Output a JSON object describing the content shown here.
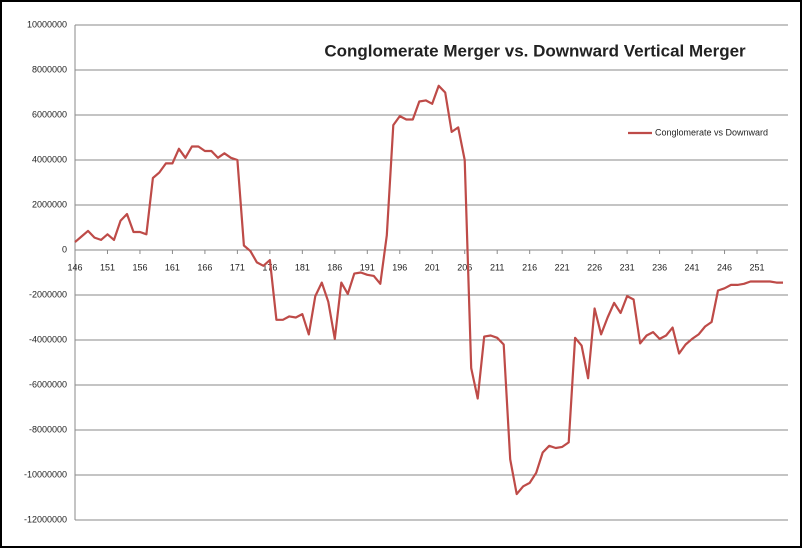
{
  "chart_data": {
    "type": "line",
    "title": "Conglomerate Merger vs. Downward Vertical Merger",
    "x": [
      146,
      147,
      148,
      149,
      150,
      151,
      152,
      153,
      154,
      155,
      156,
      157,
      158,
      159,
      160,
      161,
      162,
      163,
      164,
      165,
      166,
      167,
      168,
      169,
      170,
      171,
      172,
      173,
      174,
      175,
      176,
      177,
      178,
      179,
      180,
      181,
      182,
      183,
      184,
      185,
      186,
      187,
      188,
      189,
      190,
      191,
      192,
      193,
      194,
      195,
      196,
      197,
      198,
      199,
      200,
      201,
      202,
      203,
      204,
      205,
      206,
      207,
      208,
      209,
      210,
      211,
      212,
      213,
      214,
      215,
      216,
      217,
      218,
      219,
      220,
      221,
      222,
      223,
      224,
      225,
      226,
      227,
      228,
      229,
      230,
      231,
      232,
      233,
      234,
      235,
      236,
      237,
      238,
      239,
      240,
      241,
      242,
      243,
      244,
      245,
      246,
      247,
      248,
      249,
      250,
      251,
      252,
      253,
      254,
      255
    ],
    "series": [
      {
        "name": "Conglomerate vs Downward",
        "color": "#be4b48",
        "values": [
          350000,
          600000,
          850000,
          550000,
          450000,
          700000,
          450000,
          1300000,
          1600000,
          800000,
          800000,
          700000,
          3200000,
          3450000,
          3850000,
          3850000,
          4500000,
          4100000,
          4600000,
          4600000,
          4400000,
          4400000,
          4100000,
          4300000,
          4100000,
          4000000,
          200000,
          -50000,
          -550000,
          -700000,
          -450000,
          -3100000,
          -3100000,
          -2950000,
          -3000000,
          -2850000,
          -3750000,
          -2050000,
          -1450000,
          -2300000,
          -3950000,
          -1450000,
          -1950000,
          -1050000,
          -1000000,
          -1100000,
          -1150000,
          -1500000,
          650000,
          5550000,
          5950000,
          5800000,
          5800000,
          6600000,
          6650000,
          6500000,
          7300000,
          7000000,
          5250000,
          5450000,
          4000000,
          -5250000,
          -6600000,
          -3850000,
          -3800000,
          -3900000,
          -4200000,
          -9300000,
          -10850000,
          -10500000,
          -10350000,
          -9900000,
          -9000000,
          -8700000,
          -8800000,
          -8750000,
          -8550000,
          -3900000,
          -4250000,
          -5700000,
          -2600000,
          -3750000,
          -3000000,
          -2350000,
          -2800000,
          -2050000,
          -2200000,
          -4150000,
          -3800000,
          -3650000,
          -3950000,
          -3800000,
          -3450000,
          -4600000,
          -4200000,
          -3950000,
          -3750000,
          -3400000,
          -3200000,
          -1800000,
          -1700000,
          -1550000,
          -1550000,
          -1500000,
          -1400000,
          -1400000,
          -1400000,
          -1400000,
          -1450000,
          -1450000
        ]
      }
    ],
    "xlim": [
      146,
      255
    ],
    "xticks": [
      146,
      151,
      156,
      161,
      166,
      171,
      176,
      181,
      186,
      191,
      196,
      201,
      206,
      211,
      216,
      221,
      226,
      231,
      236,
      241,
      246,
      251
    ],
    "ylim": [
      -12000000,
      10000000
    ],
    "yticks": [
      -12000000,
      -10000000,
      -8000000,
      -6000000,
      -4000000,
      -2000000,
      0,
      2000000,
      4000000,
      6000000,
      8000000,
      10000000
    ],
    "grid": true,
    "legend": "right"
  }
}
